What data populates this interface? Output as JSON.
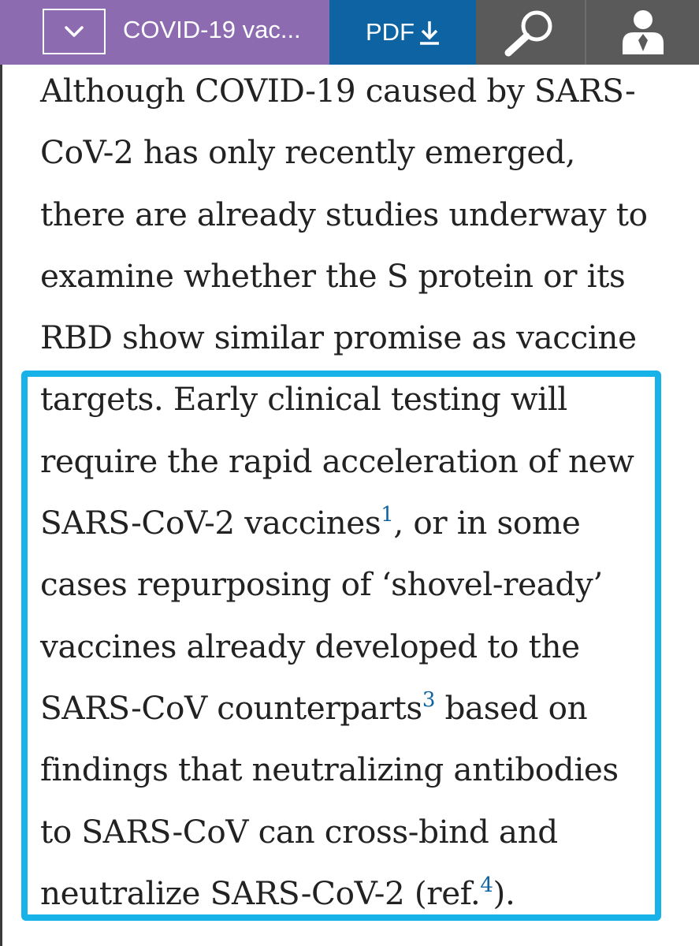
{
  "toolbar": {
    "nav_title": "COVID-19 vac...",
    "pdf_label": "PDF",
    "icons": {
      "toggle": "chevron-down-icon",
      "download": "download-arrow-icon",
      "search": "search-icon",
      "account": "user-icon"
    },
    "colors": {
      "nav_bg": "#8c6bb1",
      "pdf_bg": "#0e64a2",
      "tools_bg": "#5a5a5a",
      "highlight": "#17b3e8"
    }
  },
  "article": {
    "lines": [
      "Although COVID-19 caused by SARS-",
      "CoV-2 has only recently emerged,",
      "there are already studies underway to",
      "examine whether the S protein or its",
      "RBD show similar promise as vaccine",
      "targets. Early clinical testing will",
      "require the rapid acceleration of new"
    ],
    "line8": {
      "before": "SARS-CoV-2 vaccines",
      "ref": "1",
      "after": ", or in some"
    },
    "line9": "cases repurposing of ‘shovel-ready’",
    "line10": "vaccines already developed to the",
    "line11": {
      "before": "SARS-CoV counterparts",
      "ref": "3",
      "after": " based on"
    },
    "line12": "findings that neutralizing antibodies",
    "line13": "to SARS-CoV can cross-bind and",
    "line14": {
      "before": "neutralize SARS-CoV-2 (ref.",
      "ref": "4",
      "after": ")."
    }
  }
}
